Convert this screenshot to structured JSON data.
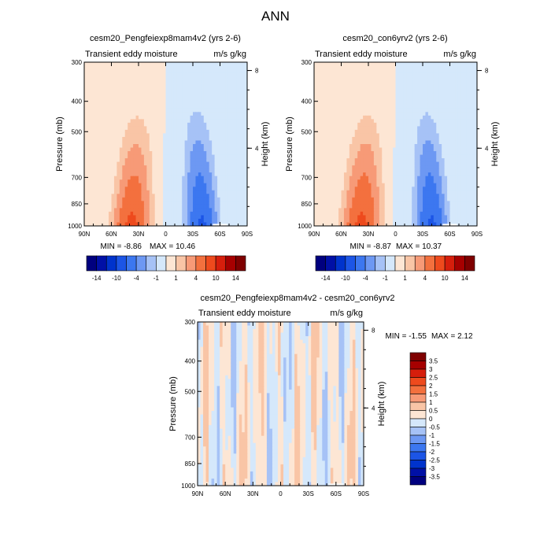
{
  "page": {
    "title": "ANN"
  },
  "chart_data": [
    {
      "type": "heatmap",
      "title": "cesm20_Pengfeiexp8mam4v2 (yrs 2-6)",
      "subtitle_left": "Transient eddy moisture",
      "subtitle_right": "m/s g/kg",
      "ylabel": "Pressure (mb)",
      "y2label": "Height (km)",
      "x_ticks": [
        "90N",
        "60N",
        "30N",
        "0",
        "30S",
        "60S",
        "90S"
      ],
      "y_ticks": [
        "300",
        "400",
        "500",
        "700",
        "850",
        "1000"
      ],
      "y_tick_values": [
        300,
        400,
        500,
        700,
        850,
        1000
      ],
      "y2_ticks": [
        "8",
        "4"
      ],
      "y2_tick_values": [
        8,
        4
      ],
      "xlim": [
        90,
        -90
      ],
      "ylim": [
        1000,
        300
      ],
      "y_scale": "log",
      "min_label": "MIN =  -8.86",
      "max_label": "MAX =  10.46",
      "colorbar_levels": [
        -14,
        -12,
        -10,
        -8,
        -4,
        -2,
        -1,
        0,
        1,
        2,
        4,
        8,
        10,
        12,
        14
      ],
      "colorbar_labels": [
        "-14",
        "-10",
        "-4",
        "-1",
        "1",
        "4",
        "10",
        "14"
      ],
      "colorbar_orientation": "horizontal"
    },
    {
      "type": "heatmap",
      "title": "cesm20_con6yrv2 (yrs 2-6)",
      "subtitle_left": "Transient eddy moisture",
      "subtitle_right": "m/s g/kg",
      "ylabel": "Pressure (mb)",
      "y2label": "Height (km)",
      "x_ticks": [
        "90N",
        "60N",
        "30N",
        "0",
        "30S",
        "60S",
        "90S"
      ],
      "y_ticks": [
        "300",
        "400",
        "500",
        "700",
        "850",
        "1000"
      ],
      "y_tick_values": [
        300,
        400,
        500,
        700,
        850,
        1000
      ],
      "y2_ticks": [
        "8",
        "4"
      ],
      "y2_tick_values": [
        8,
        4
      ],
      "xlim": [
        90,
        -90
      ],
      "ylim": [
        1000,
        300
      ],
      "y_scale": "log",
      "min_label": "MIN =  -8.87",
      "max_label": "MAX =  10.37",
      "colorbar_levels": [
        -14,
        -12,
        -10,
        -8,
        -4,
        -2,
        -1,
        0,
        1,
        2,
        4,
        8,
        10,
        12,
        14
      ],
      "colorbar_labels": [
        "-14",
        "-10",
        "-4",
        "-1",
        "1",
        "4",
        "10",
        "14"
      ],
      "colorbar_orientation": "horizontal"
    },
    {
      "type": "heatmap",
      "title": "cesm20_Pengfeiexp8mam4v2 - cesm20_con6yrv2",
      "subtitle_left": "Transient eddy moisture",
      "subtitle_right": "m/s g/kg",
      "ylabel": "Pressure (mb)",
      "y2label": "Height (km)",
      "x_ticks": [
        "90N",
        "60N",
        "30N",
        "0",
        "30S",
        "60S",
        "90S"
      ],
      "y_ticks": [
        "300",
        "400",
        "500",
        "700",
        "850",
        "1000"
      ],
      "y_tick_values": [
        300,
        400,
        500,
        700,
        850,
        1000
      ],
      "y2_ticks": [
        "8",
        "4"
      ],
      "y2_tick_values": [
        8,
        4
      ],
      "xlim": [
        90,
        -90
      ],
      "ylim": [
        1000,
        300
      ],
      "y_scale": "log",
      "min_label": "MIN =  -1.55",
      "max_label": "MAX =  2.12",
      "colorbar_levels": [
        -3.5,
        -3,
        -2.5,
        -2,
        -1.5,
        -1,
        -0.5,
        0,
        0.5,
        1,
        1.5,
        2,
        2.5,
        3,
        3.5
      ],
      "colorbar_labels": [
        "3.5",
        "3",
        "2.5",
        "2",
        "1.5",
        "1",
        "0.5",
        "0",
        "-0.5",
        "-1",
        "-1.5",
        "-2",
        "-2.5",
        "-3",
        "-3.5"
      ],
      "colorbar_orientation": "vertical"
    }
  ],
  "colors": {
    "palette": [
      "#00007f",
      "#0010a6",
      "#0033cc",
      "#1c55e6",
      "#3c77f0",
      "#6d98f3",
      "#a6c2f6",
      "#d5e8fb",
      "#fde6d4",
      "#f9c5a6",
      "#f79a77",
      "#f3703e",
      "#ee4a1d",
      "#d61e0c",
      "#a60000",
      "#7f0000"
    ],
    "missing": "#ffffff"
  }
}
